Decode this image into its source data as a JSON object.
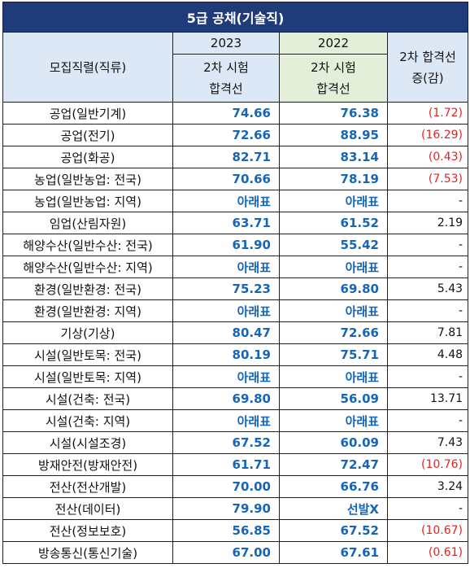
{
  "title": "5급 공채(기술직)",
  "header": {
    "col_name": "모집직렬(직류)",
    "year_2023": "2023",
    "year_2022": "2022",
    "sub_label_line1": "2차 시험",
    "sub_label_line2": "합격선",
    "diff_line1": "2차 합격선",
    "diff_line2": "증(감)"
  },
  "rows": [
    {
      "name": "공업(일반기계)",
      "v2023": "74.66",
      "v2022": "76.38",
      "diff": "(1.72)",
      "neg": true
    },
    {
      "name": "공업(전기)",
      "v2023": "72.66",
      "v2022": "88.95",
      "diff": "(16.29)",
      "neg": true
    },
    {
      "name": "공업(화공)",
      "v2023": "82.71",
      "v2022": "83.14",
      "diff": "(0.43)",
      "neg": true
    },
    {
      "name": "농업(일반농업: 전국)",
      "v2023": "70.66",
      "v2022": "78.19",
      "diff": "(7.53)",
      "neg": true
    },
    {
      "name": "농업(일반농업: 지역)",
      "v2023": "아래표",
      "v2022": "아래표",
      "diff": "-",
      "neg": false
    },
    {
      "name": "임업(산림자원)",
      "v2023": "63.71",
      "v2022": "61.52",
      "diff": "2.19",
      "neg": false
    },
    {
      "name": "해양수산(일반수산: 전국)",
      "v2023": "61.90",
      "v2022": "55.42",
      "diff": "-",
      "neg": false
    },
    {
      "name": "해양수산(일반수산: 지역)",
      "v2023": "아래표",
      "v2022": "아래표",
      "diff": "-",
      "neg": false
    },
    {
      "name": "환경(일반환경: 전국)",
      "v2023": "75.23",
      "v2022": "69.80",
      "diff": "5.43",
      "neg": false
    },
    {
      "name": "환경(일반환경: 지역)",
      "v2023": "아래표",
      "v2022": "아래표",
      "diff": "-",
      "neg": false
    },
    {
      "name": "기상(기상)",
      "v2023": "80.47",
      "v2022": "72.66",
      "diff": "7.81",
      "neg": false
    },
    {
      "name": "시설(일반토목: 전국)",
      "v2023": "80.19",
      "v2022": "75.71",
      "diff": "4.48",
      "neg": false
    },
    {
      "name": "시설(일반토목: 지역)",
      "v2023": "아래표",
      "v2022": "아래표",
      "diff": "-",
      "neg": false
    },
    {
      "name": "시설(건축: 전국)",
      "v2023": "69.80",
      "v2022": "56.09",
      "diff": "13.71",
      "neg": false
    },
    {
      "name": "시설(건축: 지역)",
      "v2023": "아래표",
      "v2022": "아래표",
      "diff": "-",
      "neg": false
    },
    {
      "name": "시설(시설조경)",
      "v2023": "67.52",
      "v2022": "60.09",
      "diff": "7.43",
      "neg": false
    },
    {
      "name": "방재안전(방재안전)",
      "v2023": "61.71",
      "v2022": "72.47",
      "diff": "(10.76)",
      "neg": true
    },
    {
      "name": "전산(전산개발)",
      "v2023": "70.00",
      "v2022": "66.76",
      "diff": "3.24",
      "neg": false
    },
    {
      "name": "전산(데이터)",
      "v2023": "79.90",
      "v2022": "선발X",
      "diff": "-",
      "neg": false
    },
    {
      "name": "전산(정보보호)",
      "v2023": "56.85",
      "v2022": "67.52",
      "diff": "(10.67)",
      "neg": true
    },
    {
      "name": "방송통신(통신기술)",
      "v2023": "67.00",
      "v2022": "67.61",
      "diff": "(0.61)",
      "neg": true
    }
  ]
}
